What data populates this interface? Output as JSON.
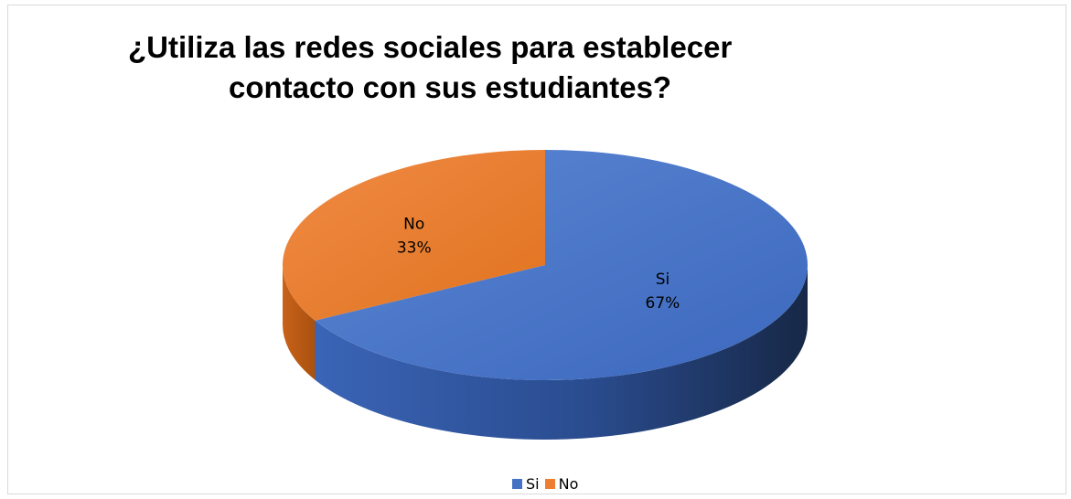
{
  "chart_data": {
    "type": "pie",
    "title_lines": [
      "¿Utiliza las redes sociales para establecer",
      "contacto con sus estudiantes?"
    ],
    "categories": [
      "Si",
      "No"
    ],
    "values": [
      67,
      33
    ],
    "data_labels": [
      {
        "category": "Si",
        "percent": "67%"
      },
      {
        "category": "No",
        "percent": "33%"
      }
    ],
    "colors": [
      "#4472C4",
      "#ED7D31"
    ],
    "legend_position": "bottom",
    "style": "3d"
  }
}
